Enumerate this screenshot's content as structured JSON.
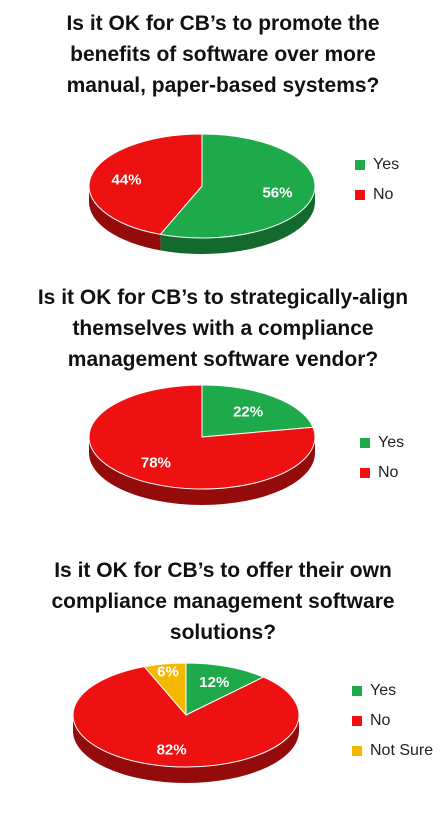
{
  "colors": {
    "yes": "#1eaa4a",
    "no": "#ee1111",
    "not_sure": "#f5b800"
  },
  "chart_data": [
    {
      "type": "pie",
      "title": "Is it OK for CB’s to promote the benefits of software over more manual, paper-based systems?",
      "title_lines": [
        "Is it OK for CB’s to promote the",
        "benefits of software over more",
        "manual, paper-based systems?"
      ],
      "categories": [
        "Yes",
        "No"
      ],
      "values": [
        56,
        44
      ],
      "labels": [
        "56%",
        "44%"
      ],
      "legend_placement": "right"
    },
    {
      "type": "pie",
      "title": "Is it OK for CB’s to strategically-align themselves with a compliance management software vendor?",
      "title_lines": [
        "Is it OK for CB’s to strategically-align",
        "themselves with a compliance",
        "management software vendor?"
      ],
      "categories": [
        "Yes",
        "No"
      ],
      "values": [
        22,
        78
      ],
      "labels": [
        "22%",
        "78%"
      ],
      "legend_placement": "right"
    },
    {
      "type": "pie",
      "title": "Is it OK for CB’s to offer their own compliance management software solutions?",
      "title_lines": [
        "Is it OK for CB’s to offer their own",
        "compliance management software",
        "solutions?"
      ],
      "categories": [
        "Yes",
        "No",
        "Not Sure"
      ],
      "values": [
        12,
        82,
        6
      ],
      "labels": [
        "12%",
        "82%",
        "6%"
      ],
      "legend_placement": "right"
    }
  ]
}
